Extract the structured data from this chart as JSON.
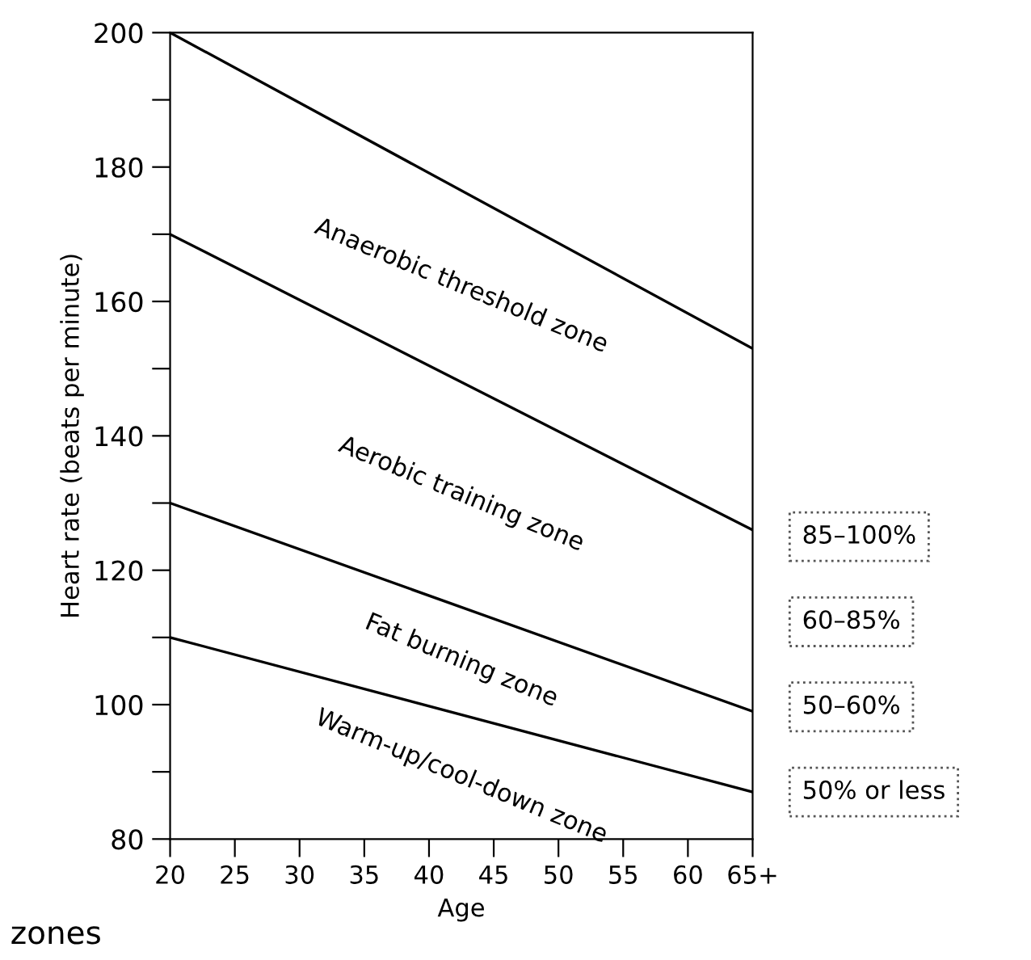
{
  "chart_data": {
    "type": "line",
    "xlabel": "Age",
    "ylabel": "Heart rate (beats per minute)",
    "xlim": [
      20,
      65
    ],
    "ylim": [
      80,
      200
    ],
    "xticks": [
      20,
      25,
      30,
      35,
      40,
      45,
      50,
      55,
      60,
      {
        "value": 65,
        "label": "65+"
      }
    ],
    "yticks": [
      80,
      {
        "value": 90,
        "label": null
      },
      100,
      {
        "value": 110,
        "label": null
      },
      120,
      {
        "value": 130,
        "label": null
      },
      140,
      {
        "value": 150,
        "label": null
      },
      160,
      {
        "value": 170,
        "label": null
      },
      180,
      {
        "value": 190,
        "label": null
      },
      200
    ],
    "x": [
      20,
      65
    ],
    "series": [
      {
        "color": "#000000",
        "values": [
          200,
          153
        ]
      },
      {
        "color": "#000000",
        "values": [
          170,
          126
        ]
      },
      {
        "color": "#000000",
        "values": [
          130,
          99
        ]
      },
      {
        "color": "#000000",
        "values": [
          110,
          87
        ]
      }
    ],
    "grid": false,
    "annotations": [
      "Anaerobic threshold zone",
      "Aerobic training zone",
      "Fat burning zone",
      "Warm-up/cool-down zone",
      "85–100%",
      "60–85%",
      "50–60%",
      "50% or less",
      "zones"
    ]
  }
}
